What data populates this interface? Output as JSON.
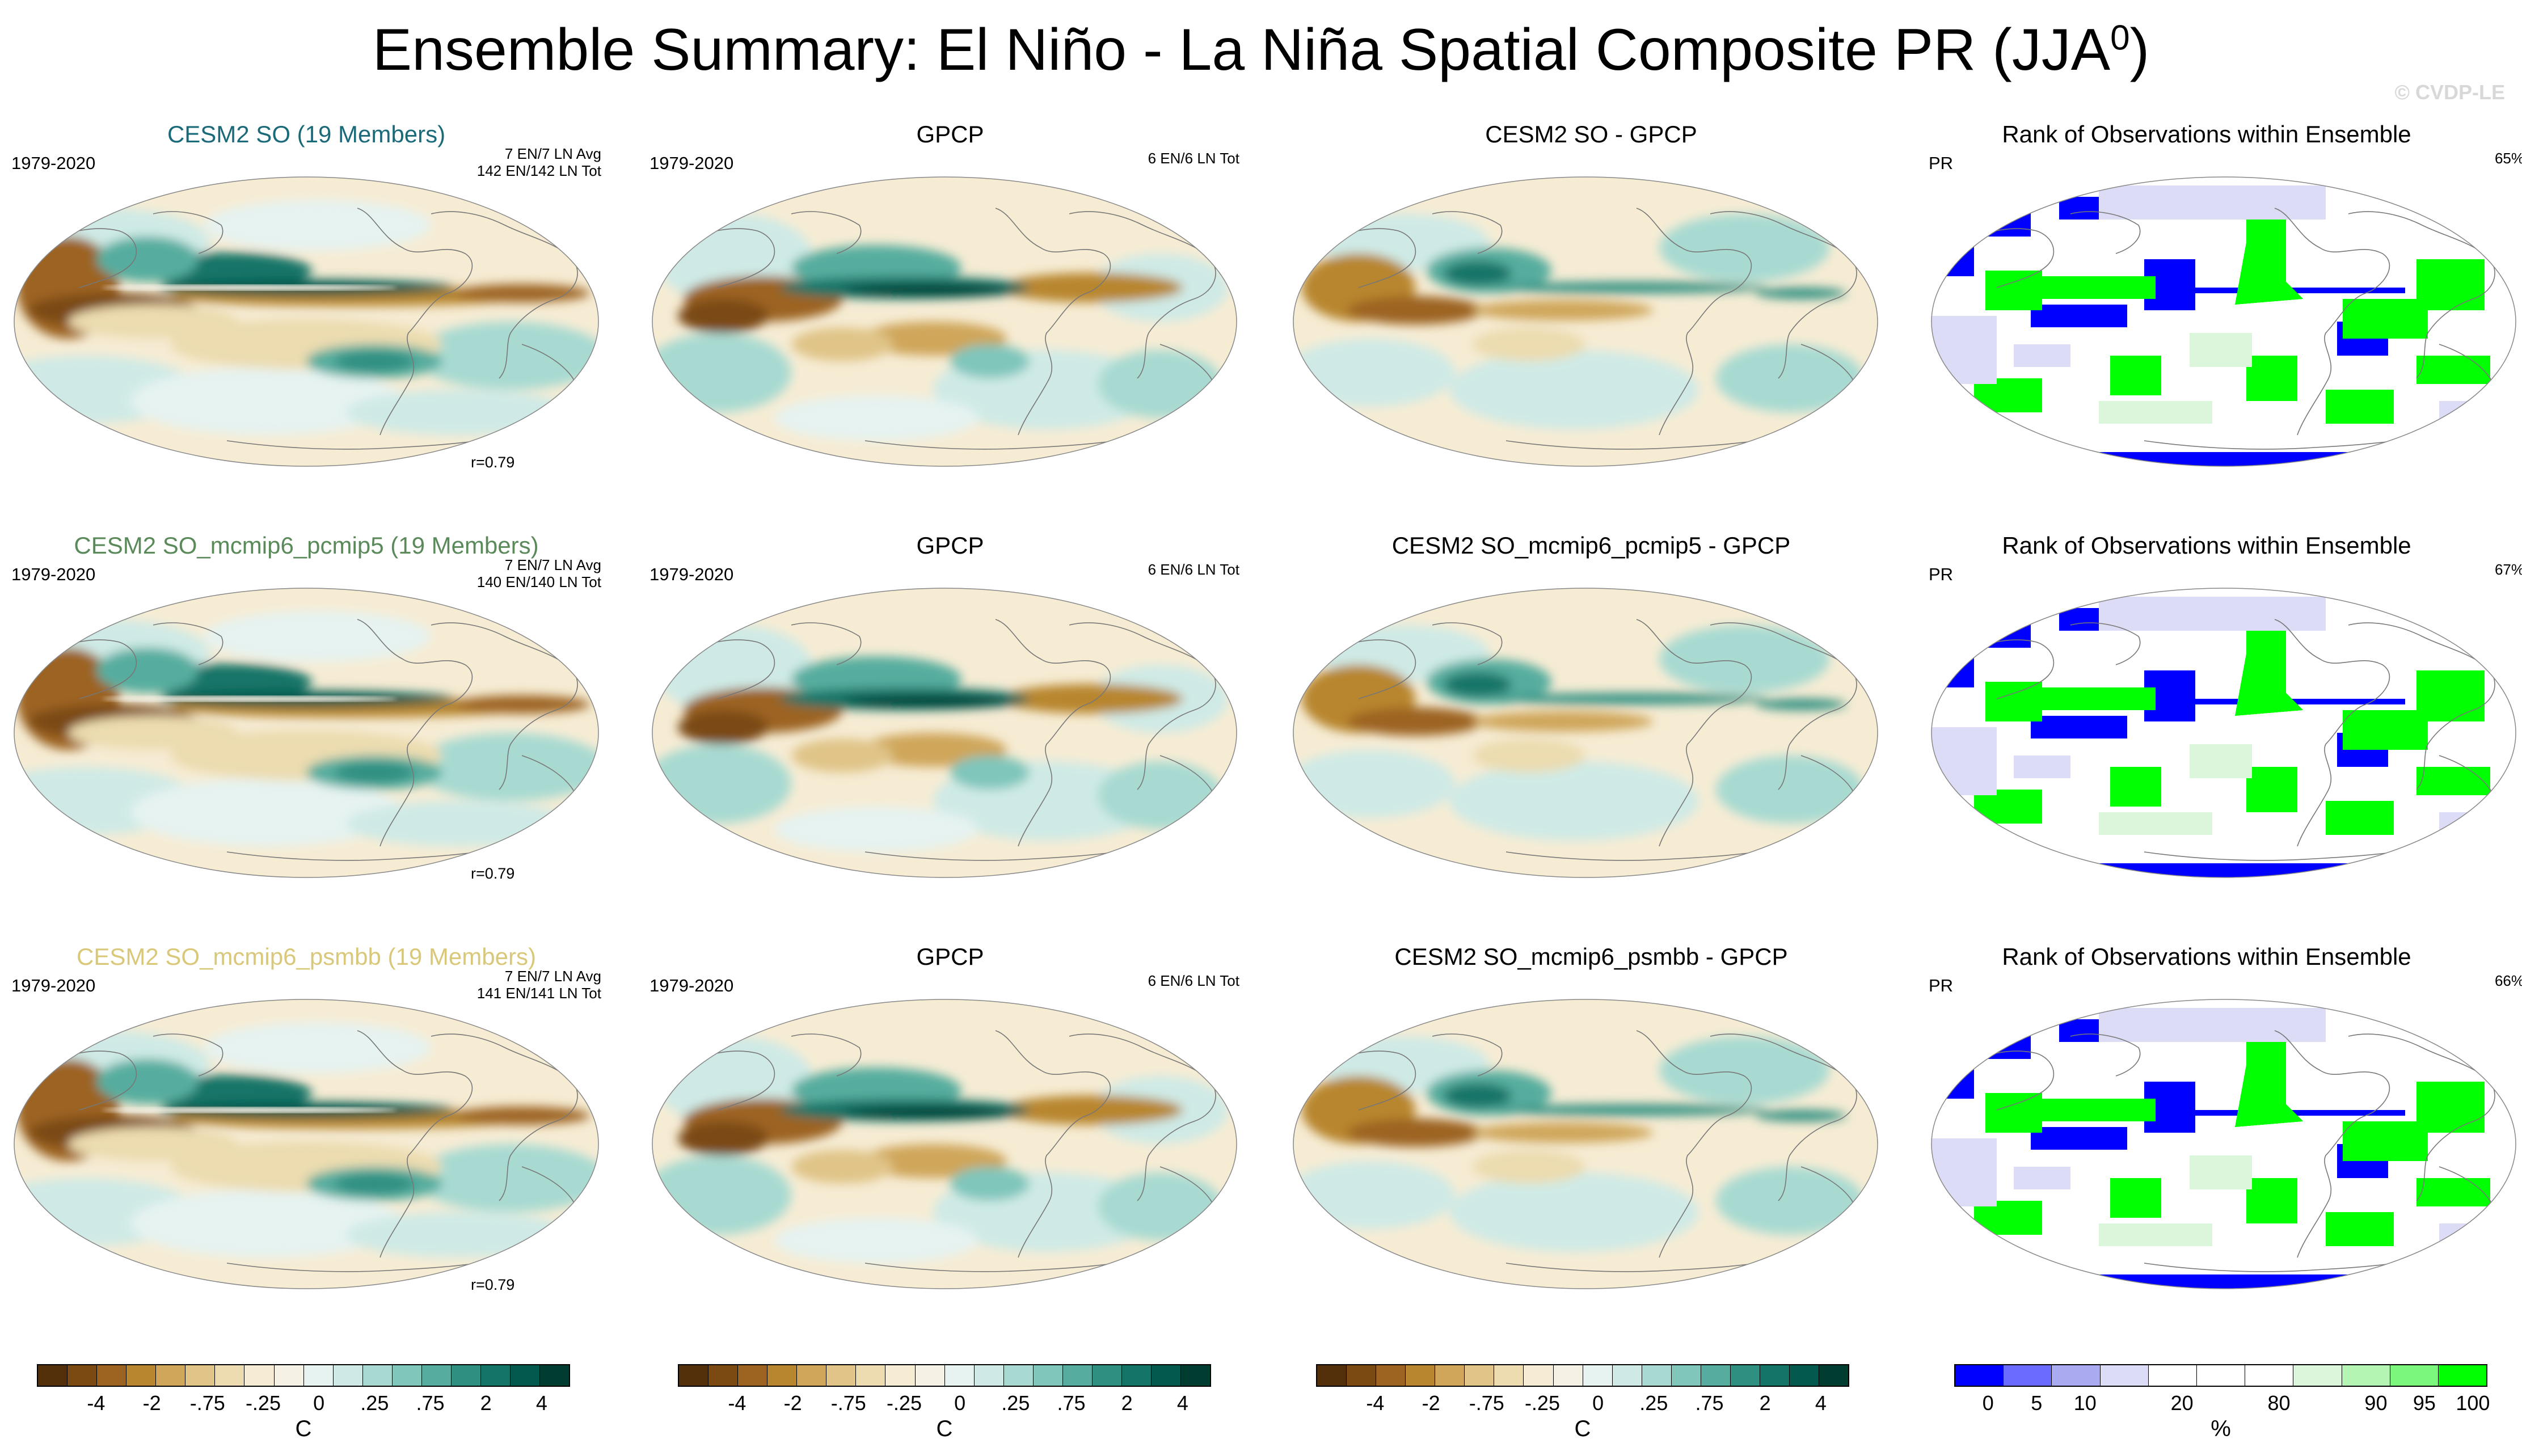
{
  "title": "Ensemble Summary: El Niño - La Niña Spatial Composite PR (JJA",
  "title_sup": "0",
  "title_close": ")",
  "copyright": "© CVDP-LE",
  "colors": {
    "brown_dark": "#54300a",
    "teal_dark": "#003c30",
    "rank_blue": "#0000ff",
    "rank_green": "#00ff00",
    "title_cesm2_so": "#1a6a7a",
    "title_pcmip5": "#5a8a5a",
    "title_psmbb": "#d9c87a"
  },
  "rows": [
    {
      "model": {
        "title": "CESM2 SO (19 Members)",
        "period": "1979-2020",
        "avg": "7 EN/7 LN Avg",
        "tot": "142 EN/142 LN Tot",
        "r": "r=0.79"
      },
      "obs": {
        "title": "GPCP",
        "period": "1979-2020",
        "tot": "6 EN/6 LN Tot"
      },
      "diff": {
        "title": "CESM2 SO - GPCP"
      },
      "rank": {
        "title": "Rank of Observations within Ensemble",
        "var": "PR",
        "pct": "65%"
      }
    },
    {
      "model": {
        "title": "CESM2 SO_mcmip6_pcmip5 (19 Members)",
        "period": "1979-2020",
        "avg": "7 EN/7 LN Avg",
        "tot": "140 EN/140 LN Tot",
        "r": "r=0.79"
      },
      "obs": {
        "title": "GPCP",
        "period": "1979-2020",
        "tot": "6 EN/6 LN Tot"
      },
      "diff": {
        "title": "CESM2 SO_mcmip6_pcmip5 - GPCP"
      },
      "rank": {
        "title": "Rank of Observations within Ensemble",
        "var": "PR",
        "pct": "67%"
      }
    },
    {
      "model": {
        "title": "CESM2 SO_mcmip6_psmbb (19 Members)",
        "period": "1979-2020",
        "avg": "7 EN/7 LN Avg",
        "tot": "141 EN/141 LN Tot",
        "r": "r=0.79"
      },
      "obs": {
        "title": "GPCP",
        "period": "1979-2020",
        "tot": "6 EN/6 LN Tot"
      },
      "diff": {
        "title": "CESM2 SO_mcmip6_psmbb - GPCP"
      },
      "rank": {
        "title": "Rank of Observations within Ensemble",
        "var": "PR",
        "pct": "66%"
      }
    }
  ],
  "colorbar": {
    "ticks": [
      "-4",
      "-2",
      "-.75",
      "-.25",
      "0",
      ".25",
      ".75",
      "2",
      "4"
    ],
    "unit": "C",
    "colors": [
      "#54300a",
      "#7a4a12",
      "#9c6420",
      "#b8862e",
      "#cfa65a",
      "#e0c488",
      "#ecdcb0",
      "#f6ecd4",
      "#f4f0e4",
      "#e6f3f1",
      "#cfeae6",
      "#a8dad2",
      "#80c6bb",
      "#56ad9f",
      "#2f8f81",
      "#137467",
      "#03594d",
      "#003c30"
    ]
  },
  "rank_colorbar": {
    "ticks": [
      "0",
      "5",
      "10",
      "20",
      "80",
      "90",
      "95",
      "100"
    ],
    "unit": "%",
    "colors": [
      "#0000ff",
      "#6a6aff",
      "#aaaaf0",
      "#dcdcf6",
      "#ffffff",
      "#ffffff",
      "#ffffff",
      "#dcf6dc",
      "#b4f5b4",
      "#7af77a",
      "#00ff00"
    ]
  }
}
